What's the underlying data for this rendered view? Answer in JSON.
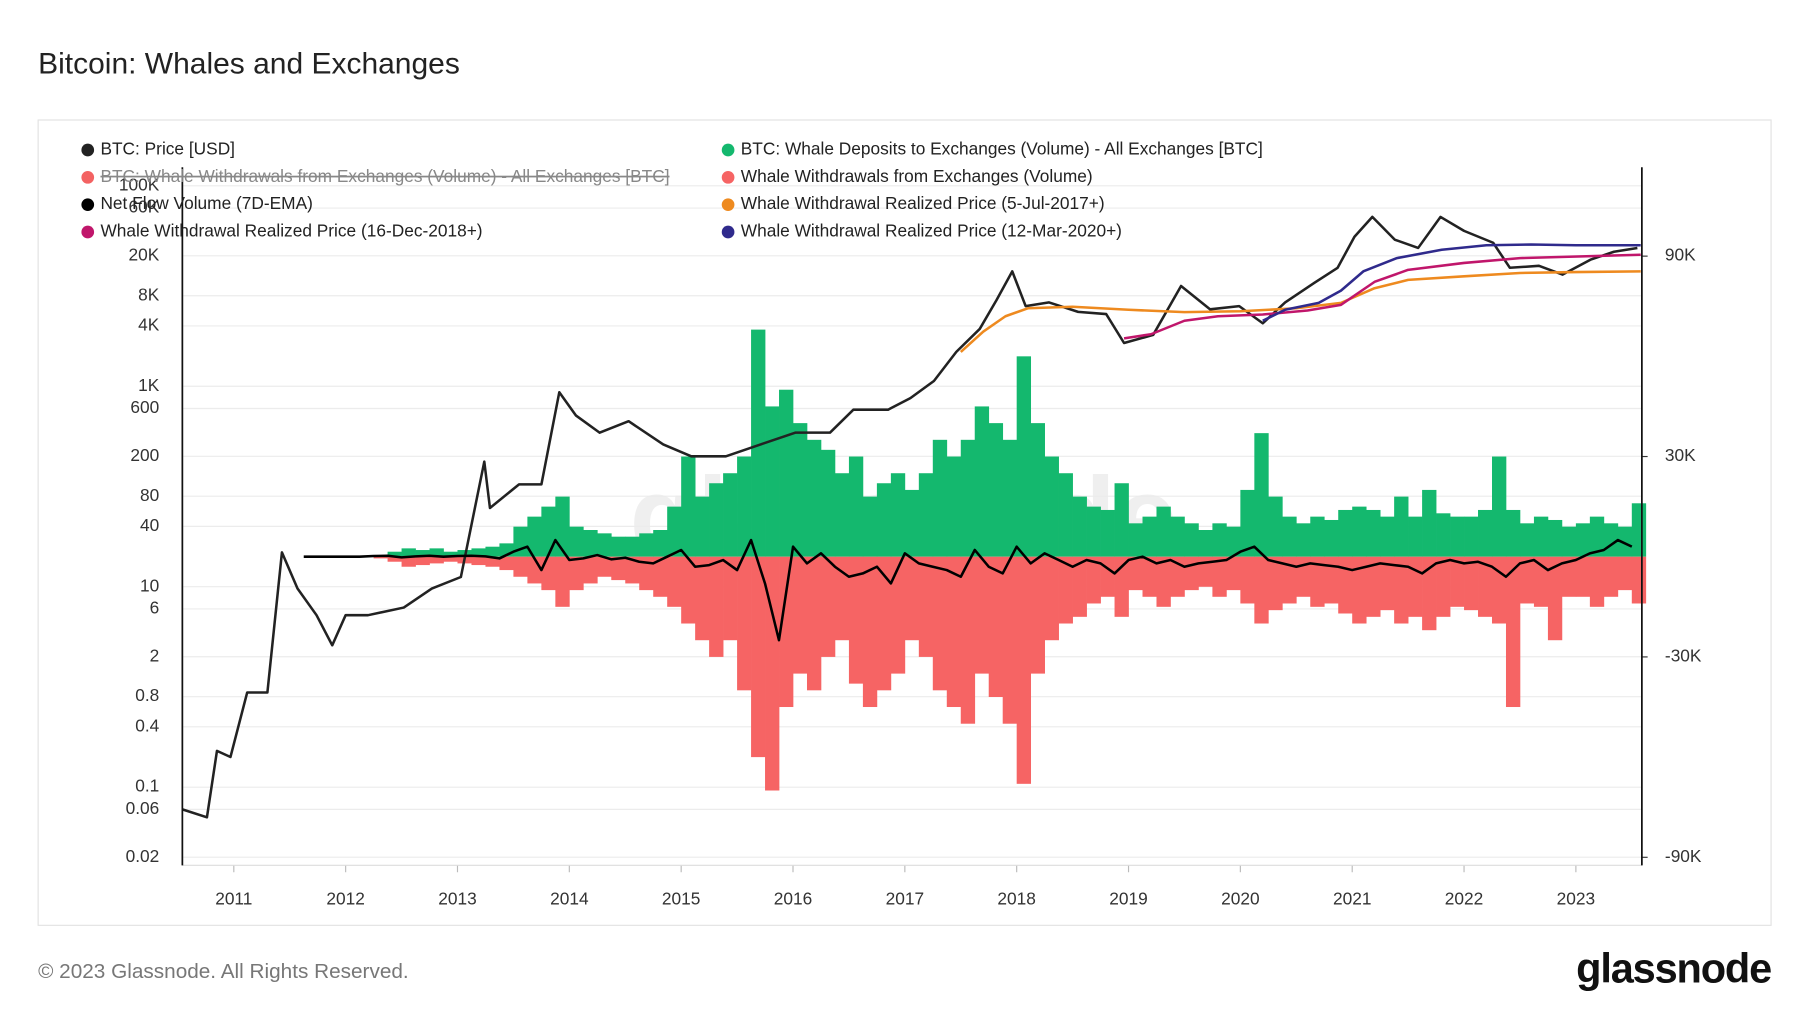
{
  "chart_data": {
    "type": "line",
    "title": "Bitcoin: Whales and Exchanges",
    "watermark": "glassnode",
    "footer": "© 2023 Glassnode. All Rights Reserved.",
    "logo": "glassnode",
    "xlim": [
      2010.54,
      2023.59
    ],
    "xticks": [
      2011,
      2012,
      2013,
      2014,
      2015,
      2016,
      2017,
      2018,
      2019,
      2020,
      2021,
      2022,
      2023
    ],
    "ylim": [
      0.0166,
      153000
    ],
    "ylog": true,
    "yticks": [
      0.02,
      0.06,
      0.1,
      0.4,
      0.8,
      2,
      6,
      10,
      40,
      80,
      200,
      600,
      {
        "value": 1000,
        "label": "1K"
      },
      {
        "value": 4000,
        "label": "4K"
      },
      {
        "value": 8000,
        "label": "8K"
      },
      {
        "value": 20000,
        "label": "20K"
      },
      {
        "value": 60000,
        "label": "60K"
      },
      {
        "value": 100000,
        "label": "100K"
      }
    ],
    "y2lim": [
      -92400,
      116600
    ],
    "y2ticks": [
      {
        "value": 90000,
        "label": "90K"
      },
      {
        "value": 30000,
        "label": "30K"
      },
      {
        "value": -30000,
        "label": "-30K"
      },
      {
        "value": -90000,
        "label": "-90K"
      }
    ],
    "grid": true,
    "series": [
      {
        "name": "BTC: Price [USD]",
        "color": "#222222",
        "type": "line",
        "axis": "y",
        "x": [
          2010.54,
          2010.76,
          2010.85,
          2010.97,
          2011.12,
          2011.3,
          2011.43,
          2011.57,
          2011.74,
          2011.88,
          2012.0,
          2012.2,
          2012.52,
          2012.77,
          2013.03,
          2013.24,
          2013.29,
          2013.55,
          2013.75,
          2013.91,
          2014.06,
          2014.27,
          2014.53,
          2014.84,
          2015.09,
          2015.4,
          2015.71,
          2016.02,
          2016.33,
          2016.54,
          2016.85,
          2017.05,
          2017.26,
          2017.46,
          2017.67,
          2017.82,
          2017.96,
          2018.08,
          2018.29,
          2018.55,
          2018.8,
          2018.96,
          2019.22,
          2019.47,
          2019.73,
          2019.99,
          2020.2,
          2020.4,
          2020.66,
          2020.87,
          2021.02,
          2021.18,
          2021.38,
          2021.59,
          2021.79,
          2022.0,
          2022.26,
          2022.41,
          2022.67,
          2022.88,
          2023.13,
          2023.34,
          2023.55
        ],
        "values": [
          0.06,
          0.05,
          0.23,
          0.2,
          0.88,
          0.88,
          22,
          9.6,
          5.2,
          2.6,
          5.2,
          5.2,
          6.2,
          9.6,
          12.5,
          177,
          61,
          105,
          105,
          870,
          510,
          344,
          448,
          263,
          200,
          200,
          263,
          344,
          344,
          583,
          583,
          760,
          1130,
          2200,
          3730,
          7260,
          14000,
          6300,
          6860,
          5530,
          5250,
          2700,
          3250,
          10000,
          5860,
          6300,
          4250,
          6860,
          10750,
          15200,
          31000,
          49000,
          29000,
          24000,
          49000,
          35500,
          27000,
          15200,
          15900,
          13000,
          18300,
          22000,
          24000
        ]
      },
      {
        "name": "BTC: Whale Deposits to Exchanges (Volume) - All Exchanges [BTC]",
        "color": "#14b86e",
        "type": "bar",
        "axis": "y2",
        "x": [
          2011.625,
          2011.75,
          2011.875,
          2012.0,
          2012.125,
          2012.25,
          2012.375,
          2012.5,
          2012.625,
          2012.75,
          2012.875,
          2013.0,
          2013.125,
          2013.25,
          2013.375,
          2013.5,
          2013.625,
          2013.75,
          2013.875,
          2014.0,
          2014.125,
          2014.25,
          2014.375,
          2014.5,
          2014.625,
          2014.75,
          2014.875,
          2015.0,
          2015.125,
          2015.25,
          2015.375,
          2015.5,
          2015.625,
          2015.75,
          2015.875,
          2016.0,
          2016.125,
          2016.25,
          2016.375,
          2016.5,
          2016.625,
          2016.75,
          2016.875,
          2017.0,
          2017.125,
          2017.25,
          2017.375,
          2017.5,
          2017.625,
          2017.75,
          2017.875,
          2018.0,
          2018.125,
          2018.25,
          2018.375,
          2018.5,
          2018.625,
          2018.75,
          2018.875,
          2019.0,
          2019.125,
          2019.25,
          2019.375,
          2019.5,
          2019.625,
          2019.75,
          2019.875,
          2020.0,
          2020.125,
          2020.25,
          2020.375,
          2020.5,
          2020.625,
          2020.75,
          2020.875,
          2021.0,
          2021.125,
          2021.25,
          2021.375,
          2021.5,
          2021.625,
          2021.75,
          2021.875,
          2022.0,
          2022.125,
          2022.25,
          2022.375,
          2022.5,
          2022.625,
          2022.75,
          2022.875,
          2023.0,
          2023.125,
          2023.25,
          2023.375,
          2023.5
        ],
        "values": [
          0,
          0,
          0,
          0,
          0,
          500,
          1500,
          2500,
          2000,
          2500,
          1500,
          2000,
          2500,
          3000,
          4000,
          9000,
          12000,
          15000,
          18000,
          9000,
          8000,
          7000,
          6000,
          6000,
          7000,
          8000,
          15000,
          30000,
          18000,
          22000,
          25000,
          30000,
          68000,
          45000,
          50000,
          40000,
          35000,
          32000,
          25000,
          30000,
          18000,
          22000,
          25000,
          20000,
          25000,
          35000,
          30000,
          35000,
          45000,
          40000,
          35000,
          60000,
          40000,
          30000,
          25000,
          18000,
          15000,
          14000,
          22000,
          10000,
          12000,
          15000,
          12000,
          10000,
          8000,
          10000,
          9000,
          20000,
          37000,
          18000,
          12000,
          10000,
          12000,
          11000,
          14000,
          15000,
          14000,
          12000,
          18000,
          12000,
          20000,
          13000,
          12000,
          12000,
          14000,
          30000,
          14000,
          10000,
          12000,
          11000,
          9000,
          10000,
          12000,
          10000,
          9000,
          16000
        ]
      },
      {
        "name": "BTC: Whale Withdrawals from Exchanges (Volume) - All Exchanges [BTC]",
        "color": "#f36262",
        "hidden": true
      },
      {
        "name": "Whale Withdrawals from Exchanges (Volume)",
        "color": "#f66464",
        "type": "bar",
        "axis": "y2",
        "x": [
          2011.625,
          2011.75,
          2011.875,
          2012.0,
          2012.125,
          2012.25,
          2012.375,
          2012.5,
          2012.625,
          2012.75,
          2012.875,
          2013.0,
          2013.125,
          2013.25,
          2013.375,
          2013.5,
          2013.625,
          2013.75,
          2013.875,
          2014.0,
          2014.125,
          2014.25,
          2014.375,
          2014.5,
          2014.625,
          2014.75,
          2014.875,
          2015.0,
          2015.125,
          2015.25,
          2015.375,
          2015.5,
          2015.625,
          2015.75,
          2015.875,
          2016.0,
          2016.125,
          2016.25,
          2016.375,
          2016.5,
          2016.625,
          2016.75,
          2016.875,
          2017.0,
          2017.125,
          2017.25,
          2017.375,
          2017.5,
          2017.625,
          2017.75,
          2017.875,
          2018.0,
          2018.125,
          2018.25,
          2018.375,
          2018.5,
          2018.625,
          2018.75,
          2018.875,
          2019.0,
          2019.125,
          2019.25,
          2019.375,
          2019.5,
          2019.625,
          2019.75,
          2019.875,
          2020.0,
          2020.125,
          2020.25,
          2020.375,
          2020.5,
          2020.625,
          2020.75,
          2020.875,
          2021.0,
          2021.125,
          2021.25,
          2021.375,
          2021.5,
          2021.625,
          2021.75,
          2021.875,
          2022.0,
          2022.125,
          2022.25,
          2022.375,
          2022.5,
          2022.625,
          2022.75,
          2022.875,
          2023.0,
          2023.125,
          2023.25,
          2023.375,
          2023.5
        ],
        "values": [
          0,
          0,
          0,
          0,
          0,
          -500,
          -1500,
          -3000,
          -2500,
          -2000,
          -1500,
          -2000,
          -2500,
          -3000,
          -4000,
          -6000,
          -8000,
          -10000,
          -15000,
          -10000,
          -8000,
          -6000,
          -7000,
          -8000,
          -10000,
          -12000,
          -15000,
          -20000,
          -25000,
          -30000,
          -25000,
          -40000,
          -60000,
          -70000,
          -45000,
          -35000,
          -40000,
          -30000,
          -25000,
          -38000,
          -45000,
          -40000,
          -35000,
          -25000,
          -30000,
          -40000,
          -45000,
          -50000,
          -35000,
          -42000,
          -50000,
          -68000,
          -35000,
          -25000,
          -20000,
          -18000,
          -14000,
          -12000,
          -18000,
          -10000,
          -12000,
          -15000,
          -12000,
          -10000,
          -9000,
          -12000,
          -10000,
          -14000,
          -20000,
          -16000,
          -14000,
          -12000,
          -15000,
          -14000,
          -17000,
          -20000,
          -18000,
          -16000,
          -20000,
          -18000,
          -22000,
          -18000,
          -15000,
          -16000,
          -18000,
          -20000,
          -45000,
          -14000,
          -15000,
          -25000,
          -12000,
          -12000,
          -15000,
          -12000,
          -10000,
          -14000
        ]
      },
      {
        "name": "Net Flow Volume (7D-EMA)",
        "color": "#000000",
        "type": "line",
        "axis": "y2",
        "x": [
          2011.625,
          2011.75,
          2011.875,
          2012.0,
          2012.125,
          2012.25,
          2012.375,
          2012.5,
          2012.625,
          2012.75,
          2012.875,
          2013.0,
          2013.125,
          2013.25,
          2013.375,
          2013.5,
          2013.625,
          2013.75,
          2013.875,
          2014.0,
          2014.125,
          2014.25,
          2014.375,
          2014.5,
          2014.625,
          2014.75,
          2014.875,
          2015.0,
          2015.125,
          2015.25,
          2015.375,
          2015.5,
          2015.625,
          2015.75,
          2015.875,
          2016.0,
          2016.125,
          2016.25,
          2016.375,
          2016.5,
          2016.625,
          2016.75,
          2016.875,
          2017.0,
          2017.125,
          2017.25,
          2017.375,
          2017.5,
          2017.625,
          2017.75,
          2017.875,
          2018.0,
          2018.125,
          2018.25,
          2018.375,
          2018.5,
          2018.625,
          2018.75,
          2018.875,
          2019.0,
          2019.125,
          2019.25,
          2019.375,
          2019.5,
          2019.625,
          2019.75,
          2019.875,
          2020.0,
          2020.125,
          2020.25,
          2020.375,
          2020.5,
          2020.625,
          2020.75,
          2020.875,
          2021.0,
          2021.125,
          2021.25,
          2021.375,
          2021.5,
          2021.625,
          2021.75,
          2021.875,
          2022.0,
          2022.125,
          2022.25,
          2022.375,
          2022.5,
          2022.625,
          2022.75,
          2022.875,
          2023.0,
          2023.125,
          2023.25,
          2023.375,
          2023.5
        ],
        "values": [
          0,
          0,
          0,
          0,
          0,
          200,
          300,
          -200,
          100,
          300,
          0,
          200,
          300,
          100,
          -500,
          1500,
          3000,
          -4000,
          5000,
          -1000,
          -500,
          500,
          -800,
          -300,
          -1500,
          -2000,
          0,
          2000,
          -3000,
          -2500,
          -1000,
          -4000,
          5000,
          -8000,
          -25000,
          3000,
          -2000,
          1000,
          -3000,
          -6000,
          -5000,
          -3000,
          -8000,
          1000,
          -2000,
          -3000,
          -4000,
          -6000,
          2000,
          -3000,
          -5000,
          3000,
          -2000,
          1000,
          -1000,
          -3000,
          -1000,
          -2000,
          -5000,
          -1000,
          0,
          -2000,
          -1000,
          -3000,
          -2000,
          -1500,
          -1000,
          1500,
          3000,
          -1000,
          -2000,
          -3000,
          -2000,
          -2500,
          -3000,
          -4000,
          -3000,
          -2000,
          -2500,
          -3000,
          -5000,
          -2000,
          -1000,
          -2000,
          -1500,
          -3000,
          -6000,
          -2000,
          -1000,
          -4000,
          -2000,
          -1000,
          1000,
          2000,
          5000,
          3000
        ]
      },
      {
        "name": "Whale Withdrawal Realized Price (5-Jul-2017+)",
        "color": "#ee8a1f",
        "type": "line",
        "axis": "y",
        "x": [
          2017.5,
          2017.7,
          2017.9,
          2018.1,
          2018.5,
          2019.0,
          2019.5,
          2020.0,
          2020.5,
          2020.9,
          2021.2,
          2021.5,
          2022.0,
          2022.5,
          2023.0,
          2023.58
        ],
        "values": [
          2200,
          3500,
          5000,
          6000,
          6200,
          5800,
          5500,
          5600,
          6000,
          6800,
          9500,
          11500,
          12500,
          13500,
          13800,
          14000
        ]
      },
      {
        "name": "Whale Withdrawal Realized Price (16-Dec-2018+)",
        "color": "#c0166b",
        "type": "line",
        "axis": "y",
        "x": [
          2018.96,
          2019.2,
          2019.5,
          2019.8,
          2020.2,
          2020.6,
          2020.9,
          2021.2,
          2021.5,
          2022.0,
          2022.5,
          2023.58
        ],
        "values": [
          3000,
          3300,
          4500,
          5000,
          5200,
          5700,
          6500,
          11000,
          14500,
          17000,
          19000,
          20500
        ]
      },
      {
        "name": "Whale Withdrawal Realized Price (12-Mar-2020+)",
        "color": "#2f2a8c",
        "type": "line",
        "axis": "y",
        "x": [
          2020.2,
          2020.4,
          2020.7,
          2020.9,
          2021.1,
          2021.4,
          2021.8,
          2022.2,
          2022.6,
          2023.0,
          2023.58
        ],
        "values": [
          4500,
          5800,
          6800,
          9000,
          14000,
          19000,
          23000,
          25500,
          26000,
          25500,
          25500
        ]
      }
    ]
  }
}
